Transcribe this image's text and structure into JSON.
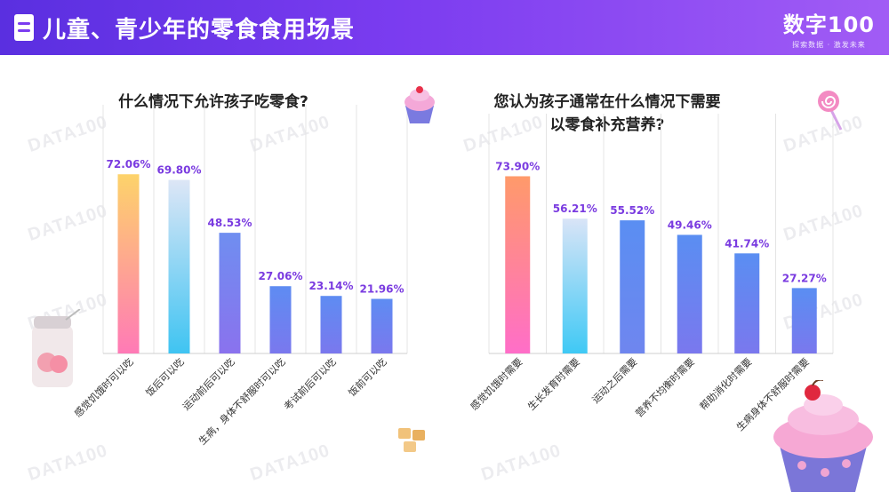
{
  "header": {
    "title": "儿童、青少年的零食食用场景",
    "logo": "数字100",
    "logo_sub": "探索数据 · 激发未来"
  },
  "watermark": "DATA100",
  "colors": {
    "header": "#6a33e8",
    "value_text": "#7a3be0"
  },
  "chart_data": [
    {
      "type": "bar",
      "title": "什么情况下允许孩子吃零食?",
      "categories": [
        "感觉饥饿时可以吃",
        "饭后可以吃",
        "运动前后可以吃",
        "生病，身体不舒服时可以吃",
        "考试前后可以吃",
        "饭前可以吃"
      ],
      "values": [
        72.06,
        69.8,
        48.53,
        27.06,
        23.14,
        21.96
      ],
      "labels": [
        "72.06%",
        "69.80%",
        "48.53%",
        "27.06%",
        "23.14%",
        "21.96%"
      ],
      "ylim": [
        0,
        100
      ],
      "grid": true
    },
    {
      "type": "bar",
      "title": "您认为孩子通常在什么情况下需要以零食补充营养?",
      "categories": [
        "感觉饥饿时需要",
        "生长发育时需要",
        "运动之后需要",
        "营养不均衡时需要",
        "帮助消化时需要",
        "生病身体不舒服时需要"
      ],
      "values": [
        73.9,
        56.21,
        55.52,
        49.46,
        41.74,
        27.27
      ],
      "labels": [
        "73.90%",
        "56.21%",
        "55.52%",
        "49.46%",
        "41.74%",
        "27.27%"
      ],
      "ylim": [
        0,
        100
      ],
      "grid": true
    }
  ]
}
